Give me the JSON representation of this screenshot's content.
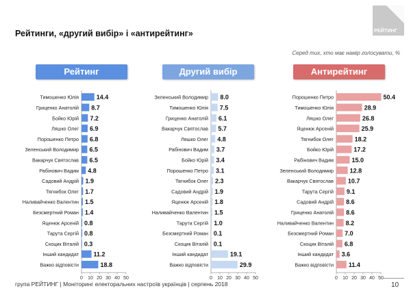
{
  "title": "Рейтинги, «другий вибір» і «антирейтинг»",
  "logo_text": "РЕЙТИНГ",
  "subtitle": "Серед тих, хто має намір голосувати, %",
  "footer": "група РЕЙТИНГ | Моніторинг електоральних настроїв українців | серпень 2018",
  "page_number": "10",
  "colors": {
    "rating_bar": "#5b8fe0",
    "second_bar": "#c7d9f2",
    "anti_bar": "#e9a1a1",
    "rating_header": "#5b8fe0",
    "second_header": "#7da6e0",
    "anti_header": "#d86b6b"
  },
  "chart_data": [
    {
      "type": "bar",
      "orientation": "horizontal",
      "title": "Рейтинг",
      "categories": [
        "Тимошенко Юлія",
        "Гриценко Анатолій",
        "Бойко Юрій",
        "Ляшко Олег",
        "Порошенко Петро",
        "Зеленський Володимир",
        "Вакарчук Святослав",
        "Рабінович Вадим",
        "Садовий Андрій",
        "Тягнибок Олег",
        "Наливайченко Валентин",
        "Безсмертний Роман",
        "Яценюк Арсеній",
        "Тарута Сергій",
        "Скоцик Віталій",
        "Інший кандидат",
        "Важко відповісти"
      ],
      "values": [
        14.4,
        8.7,
        7.2,
        6.9,
        6.8,
        6.5,
        6.5,
        4.8,
        1.9,
        1.7,
        1.5,
        1.4,
        0.8,
        0.8,
        0.3,
        11.2,
        18.8
      ],
      "value_labels": [
        "14.4",
        "8.7",
        "7.2",
        "6.9",
        "6.8",
        "6.5",
        "6.5",
        "4.8",
        "1.9",
        "1.7",
        "1.5",
        "1.4",
        "0.8",
        "0.8",
        "0.3",
        "11.2",
        "18.8"
      ],
      "xlim": [
        0,
        50
      ],
      "ticks": [
        "0",
        "10",
        "20",
        "30",
        "40",
        "50"
      ]
    },
    {
      "type": "bar",
      "orientation": "horizontal",
      "title": "Другий вибір",
      "categories": [
        "Зеленський Володимир",
        "Тимошенко Юлія",
        "Гриценко Анатолій",
        "Вакарчук Святослав",
        "Ляшко Олег",
        "Рабінович Вадим",
        "Бойко Юрій",
        "Порошенко Петро",
        "Тягнибок Олег",
        "Садовий Андрій",
        "Яценюк Арсеній",
        "Наливайченко Валентин",
        "Тарута Сергій",
        "Безсмертний Роман",
        "Скоцик Віталій",
        "Інший кандидат",
        "Важко відповісти"
      ],
      "values": [
        8.0,
        7.5,
        6.1,
        5.7,
        4.8,
        3.7,
        3.4,
        3.1,
        2.3,
        1.9,
        1.8,
        1.5,
        1.0,
        0.1,
        0.1,
        19.1,
        29.9
      ],
      "value_labels": [
        "8.0",
        "7.5",
        "6.1",
        "5.7",
        "4.8",
        "3.7",
        "3.4",
        "3.1",
        "2.3",
        "1.9",
        "1.8",
        "1.5",
        "1.0",
        "0.1",
        "0.1",
        "19.1",
        "29.9"
      ],
      "xlim": [
        0,
        50
      ],
      "ticks": [
        "0",
        "10",
        "20",
        "30",
        "40",
        "50"
      ]
    },
    {
      "type": "bar",
      "orientation": "horizontal",
      "title": "Антирейтинг",
      "categories": [
        "Порошенко Петро",
        "Тимошенко Юлія",
        "Ляшко Олег",
        "Яценюк Арсеній",
        "Тягнибок Олег",
        "Бойко Юрій",
        "Рабінович Вадим",
        "Зеленський Володимир",
        "Вакарчук Святослав",
        "Тарута Сергій",
        "Садовий Андрій",
        "Гриценко Анатолій",
        "Наливайченко Валентин",
        "Безсмертний Роман",
        "Скоцик Віталій",
        "Інший кандидат",
        "Важко відповісти"
      ],
      "values": [
        50.4,
        28.9,
        26.8,
        25.9,
        18.2,
        17.2,
        15.0,
        12.8,
        10.7,
        9.1,
        8.6,
        8.6,
        8.2,
        7.0,
        6.8,
        3.6,
        11.4
      ],
      "value_labels": [
        "50.4",
        "28.9",
        "26.8",
        "25.9",
        "18.2",
        "17.2",
        "15.0",
        "12.8",
        "10.7",
        "9.1",
        "8.6",
        "8.6",
        "8.2",
        "7.0",
        "6.8",
        "3.6",
        "11.4"
      ],
      "xlim": [
        0,
        50
      ],
      "ticks": [
        "0",
        "10",
        "20",
        "30",
        "40",
        "50"
      ]
    }
  ]
}
